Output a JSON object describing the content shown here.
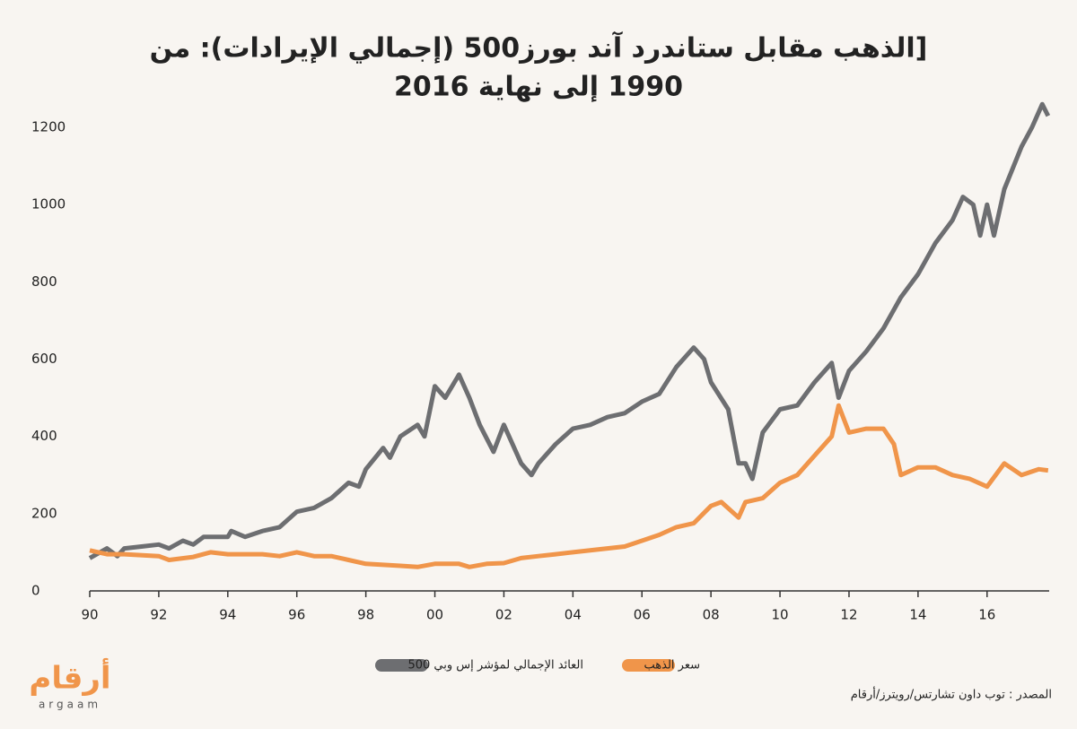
{
  "chart_data": {
    "type": "line",
    "title": [
      "[الذهب مقابل ستاندرد آند بورز500 (إجمالي الإيرادات): من",
      "1990 إلى نهاية 2016"
    ],
    "series": [
      {
        "name": "العائد الإجمالي لمؤشر إس وبي 500",
        "color": "#6d6e71",
        "x": [
          1990,
          1990.5,
          1990.8,
          1991,
          1991.5,
          1992,
          1992.3,
          1992.7,
          1993,
          1993.3,
          1994,
          1994.1,
          1994.5,
          1995,
          1995.5,
          1996,
          1996.5,
          1997,
          1997.5,
          1997.8,
          1998,
          1998.5,
          1998.7,
          1999,
          1999.5,
          1999.7,
          2000,
          2000.3,
          2000.7,
          2001,
          2001.3,
          2001.7,
          2002,
          2002.5,
          2002.8,
          2003,
          2003.5,
          2004,
          2004.5,
          2005,
          2005.5,
          2006,
          2006.5,
          2007,
          2007.5,
          2007.8,
          2008,
          2008.5,
          2008.8,
          2009,
          2009.2,
          2009.5,
          2010,
          2010.5,
          2011,
          2011.5,
          2011.7,
          2012,
          2012.5,
          2013,
          2013.5,
          2014,
          2014.5,
          2015,
          2015.3,
          2015.6,
          2015.8,
          2016,
          2016.2,
          2016.5,
          2017,
          2017.3,
          2017.6,
          2017.77
        ],
        "values": [
          85,
          110,
          90,
          110,
          115,
          120,
          110,
          130,
          120,
          140,
          140,
          155,
          140,
          155,
          165,
          205,
          215,
          240,
          280,
          270,
          315,
          370,
          345,
          400,
          430,
          400,
          530,
          500,
          560,
          500,
          430,
          360,
          430,
          330,
          300,
          330,
          380,
          420,
          430,
          450,
          460,
          490,
          510,
          580,
          630,
          600,
          540,
          470,
          330,
          330,
          290,
          410,
          470,
          480,
          540,
          590,
          500,
          570,
          620,
          680,
          760,
          820,
          900,
          960,
          1020,
          1000,
          920,
          1000,
          920,
          1040,
          1150,
          1200,
          1260,
          1230
        ]
      },
      {
        "name": "سعر الذهب",
        "color": "#f0954a",
        "x": [
          1990,
          1990.5,
          1991,
          1992,
          1992.3,
          1993,
          1993.5,
          1994,
          1995,
          1995.5,
          1996,
          1996.5,
          1997,
          1997.5,
          1998,
          1999,
          1999.5,
          2000,
          2000.7,
          2001,
          2001.5,
          2002,
          2002.5,
          2003,
          2003.5,
          2004,
          2005,
          2005.5,
          2006,
          2006.5,
          2007,
          2007.5,
          2008,
          2008.3,
          2008.8,
          2009,
          2009.5,
          2010,
          2010.5,
          2011,
          2011.5,
          2011.7,
          2012,
          2012.5,
          2013,
          2013.3,
          2013.5,
          2014,
          2014.5,
          2015,
          2015.5,
          2016,
          2016.5,
          2017,
          2017.5,
          2017.77
        ],
        "values": [
          105,
          95,
          95,
          90,
          80,
          88,
          100,
          95,
          95,
          90,
          100,
          90,
          90,
          80,
          70,
          65,
          62,
          70,
          70,
          62,
          70,
          72,
          85,
          90,
          95,
          100,
          110,
          115,
          130,
          145,
          165,
          175,
          220,
          230,
          190,
          230,
          240,
          280,
          300,
          350,
          400,
          480,
          410,
          420,
          420,
          380,
          300,
          320,
          320,
          300,
          290,
          270,
          330,
          300,
          315,
          312
        ]
      }
    ],
    "xlim": [
      1990,
      2017.8
    ],
    "xticks": [
      {
        "value": 1990,
        "label": "90"
      },
      {
        "value": 1992,
        "label": "92"
      },
      {
        "value": 1994,
        "label": "94"
      },
      {
        "value": 1996,
        "label": "96"
      },
      {
        "value": 1998,
        "label": "98"
      },
      {
        "value": 2000,
        "label": "00"
      },
      {
        "value": 2002,
        "label": "02"
      },
      {
        "value": 2004,
        "label": "04"
      },
      {
        "value": 2006,
        "label": "06"
      },
      {
        "value": 2008,
        "label": "08"
      },
      {
        "value": 2010,
        "label": "10"
      },
      {
        "value": 2012,
        "label": "12"
      },
      {
        "value": 2014,
        "label": "14"
      },
      {
        "value": 2016,
        "label": "16"
      }
    ],
    "ylim": [
      0,
      1300
    ],
    "yticks": [
      0,
      200,
      400,
      600,
      800,
      1000,
      1200
    ],
    "source": "المصدر : توب داون تشارتس/رويترز/أرقام",
    "logo": {
      "text": "أرقام",
      "subtext": "argaam"
    }
  }
}
